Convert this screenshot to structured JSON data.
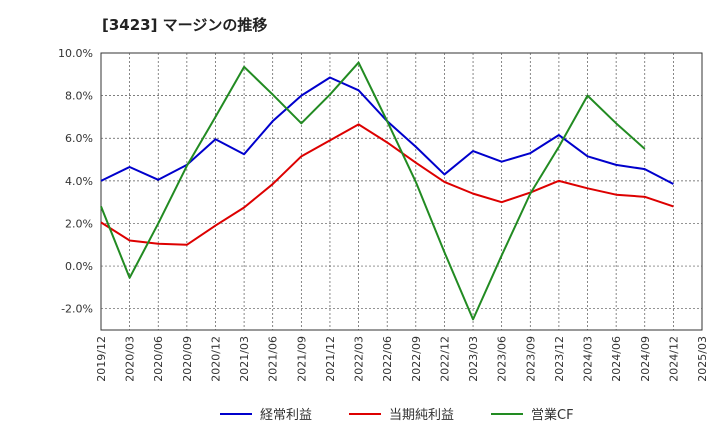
{
  "title": "[3423]  マージンの推移",
  "chart_data": {
    "type": "line",
    "x": [
      "2019/12",
      "2020/03",
      "2020/06",
      "2020/09",
      "2020/12",
      "2021/03",
      "2021/06",
      "2021/09",
      "2021/12",
      "2022/03",
      "2022/06",
      "2022/09",
      "2022/12",
      "2023/03",
      "2023/06",
      "2023/09",
      "2023/12",
      "2024/03",
      "2024/06",
      "2024/09",
      "2024/12",
      "2025/03"
    ],
    "ylim": [
      -3.0,
      10.0
    ],
    "yticks": [
      -2.0,
      0.0,
      2.0,
      4.0,
      6.0,
      8.0,
      10.0
    ],
    "ytick_labels": [
      "-2.0%",
      "0.0%",
      "2.0%",
      "4.0%",
      "6.0%",
      "8.0%",
      "10.0%"
    ],
    "grid": true,
    "legend_position": "bottom",
    "series": [
      {
        "name": "経常利益",
        "color": "#0000cc",
        "values": [
          4.0,
          4.65,
          4.05,
          4.75,
          5.95,
          5.25,
          6.8,
          8.0,
          8.85,
          8.25,
          6.8,
          5.6,
          4.3,
          5.4,
          4.9,
          5.3,
          6.15,
          5.15,
          4.75,
          4.55,
          3.85,
          null
        ]
      },
      {
        "name": "当期純利益",
        "color": "#dd0000",
        "values": [
          2.05,
          1.2,
          1.05,
          1.0,
          1.9,
          2.75,
          3.85,
          5.15,
          5.9,
          6.65,
          5.8,
          4.85,
          3.95,
          3.4,
          3.0,
          3.45,
          4.0,
          3.65,
          3.35,
          3.25,
          2.8,
          null
        ]
      },
      {
        "name": "営業CF",
        "color": "#228b22",
        "values": [
          2.8,
          -0.55,
          2.0,
          4.7,
          7.0,
          9.35,
          8.05,
          6.7,
          8.05,
          9.55,
          6.8,
          3.95,
          0.65,
          -2.5,
          0.5,
          3.4,
          5.6,
          8.0,
          6.7,
          5.5,
          null,
          null
        ]
      }
    ]
  }
}
